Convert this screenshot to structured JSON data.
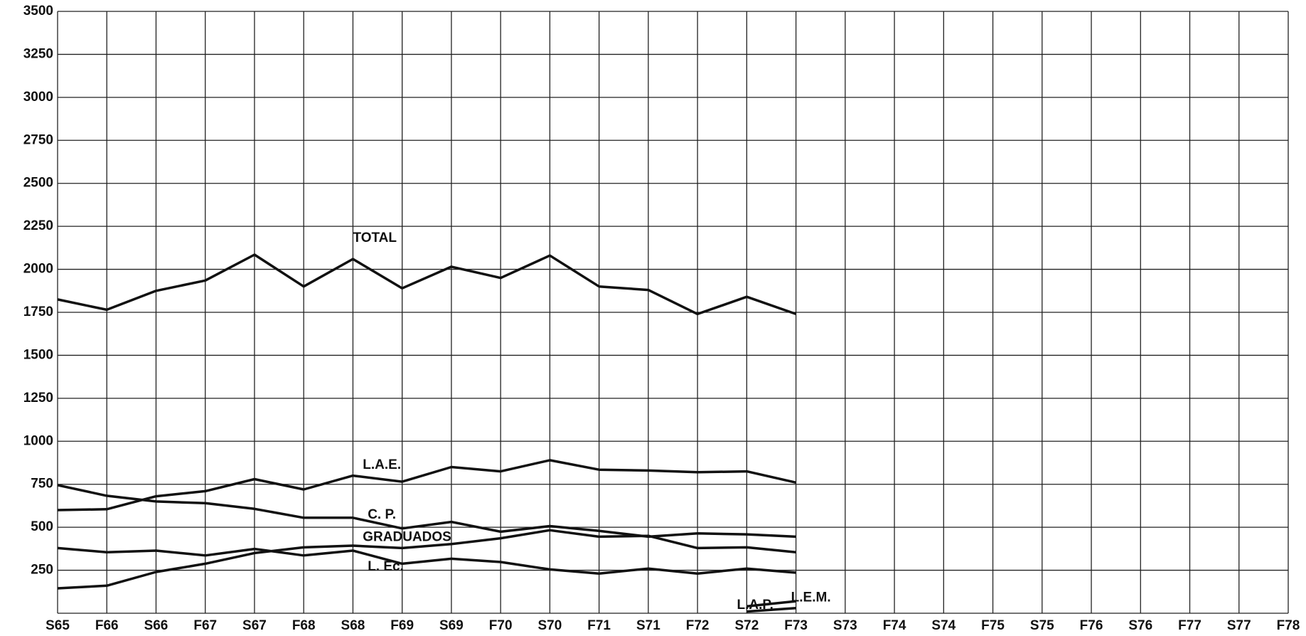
{
  "chart_data": {
    "type": "line",
    "categories": [
      "S65",
      "F66",
      "S66",
      "F67",
      "S67",
      "F68",
      "S68",
      "F69",
      "S69",
      "F70",
      "S70",
      "F71",
      "S71",
      "F72",
      "S72",
      "F73",
      "S73",
      "F74",
      "S74",
      "F75",
      "S75",
      "F76",
      "S76",
      "F77",
      "S77",
      "F78"
    ],
    "series": [
      {
        "name": "TOTAL",
        "color": "#111111",
        "values": [
          1825,
          1765,
          1875,
          1935,
          2085,
          1900,
          2060,
          1890,
          2015,
          1950,
          2080,
          1900,
          1880,
          1740,
          1840,
          1740,
          null,
          null,
          null,
          null,
          null,
          null,
          null,
          null,
          null,
          null
        ]
      },
      {
        "name": "L.A.E.",
        "color": "#111111",
        "values": [
          600,
          605,
          680,
          710,
          780,
          720,
          800,
          765,
          850,
          825,
          890,
          835,
          830,
          820,
          825,
          760,
          null,
          null,
          null,
          null,
          null,
          null,
          null,
          null,
          null,
          null
        ]
      },
      {
        "name": "C. P.",
        "color": "#111111",
        "values": [
          745,
          683,
          650,
          640,
          607,
          555,
          555,
          493,
          531,
          474,
          507,
          479,
          445,
          464,
          459,
          445,
          null,
          null,
          null,
          null,
          null,
          null,
          null,
          null,
          null,
          null
        ]
      },
      {
        "name": "GRADUADOS",
        "color": "#111111",
        "values": [
          145,
          160,
          240,
          288,
          350,
          383,
          393,
          379,
          402,
          436,
          483,
          445,
          450,
          379,
          383,
          355,
          null,
          null,
          null,
          null,
          null,
          null,
          null,
          null,
          null,
          null
        ]
      },
      {
        "name": "L. Ec.",
        "color": "#111111",
        "values": [
          379,
          355,
          364,
          336,
          374,
          336,
          364,
          288,
          317,
          298,
          255,
          231,
          260,
          231,
          260,
          236,
          null,
          null,
          null,
          null,
          null,
          null,
          null,
          null,
          null,
          null
        ]
      },
      {
        "name": "L.A.P.",
        "color": "#111111",
        "values": [
          null,
          null,
          null,
          null,
          null,
          null,
          null,
          null,
          null,
          null,
          null,
          null,
          null,
          null,
          10,
          30,
          null,
          null,
          null,
          null,
          null,
          null,
          null,
          null,
          null,
          null
        ]
      },
      {
        "name": "L.E.M.",
        "color": "#111111",
        "values": [
          null,
          null,
          null,
          null,
          null,
          null,
          null,
          null,
          null,
          null,
          null,
          null,
          null,
          null,
          40,
          70,
          null,
          null,
          null,
          null,
          null,
          null,
          null,
          null,
          null,
          null
        ]
      }
    ],
    "ylim": [
      0,
      3500
    ],
    "yticks": [
      250,
      500,
      750,
      1000,
      1250,
      1500,
      1750,
      2000,
      2250,
      2500,
      2750,
      3000,
      3250,
      3500
    ],
    "grid": true
  }
}
